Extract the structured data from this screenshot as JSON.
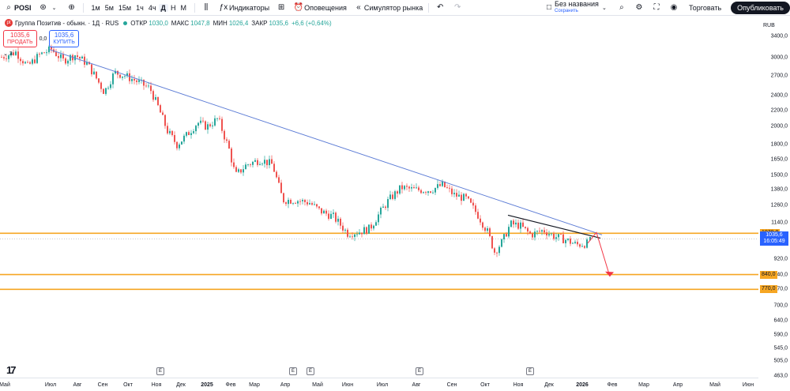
{
  "toolbar": {
    "symbol": "POSI",
    "timeframes": [
      "1м",
      "5м",
      "15м",
      "1ч",
      "4ч",
      "Д",
      "Н",
      "М"
    ],
    "active_timeframe": "Д",
    "indicators_label": "Индикаторы",
    "alerts_label": "Оповещения",
    "replay_label": "Симулятор рынка",
    "layout_name": "Без названия",
    "layout_status": "Сохранить",
    "trade_label": "Торговать",
    "publish_label": "Опубликовать"
  },
  "legend": {
    "title": "Группа Позитив - обыкн. · 1Д · RUS",
    "open_label": "ОТКР",
    "open": "1030,0",
    "high_label": "МАКС",
    "high": "1047,8",
    "low_label": "МИН",
    "low": "1026,4",
    "close_label": "ЗАКР",
    "close": "1035,6",
    "change": "+6,6 (+0,64%)",
    "sell_price": "1035,6",
    "sell_label": "ПРОДАТЬ",
    "spread": "0,0",
    "buy_price": "1035,6",
    "buy_label": "КУПИТЬ",
    "indicators_count": "3"
  },
  "price_scale": {
    "currency": "RUB",
    "ticks": [
      "3400,0",
      "3000,0",
      "2700,0",
      "2400,0",
      "2200,0",
      "2000,0",
      "1800,0",
      "1650,0",
      "1500,0",
      "1380,0",
      "1260,0",
      "1140,0",
      "920,0",
      "840,0",
      "770,0",
      "700,0",
      "640,0",
      "590,0",
      "545,0",
      "505,0",
      "463,0"
    ],
    "level_labels": [
      "1070,0",
      "840,0",
      "770,0"
    ],
    "last_price": "1035,6",
    "countdown": "16:05:49"
  },
  "time_axis": {
    "labels": [
      "Май",
      "Июл",
      "Авг",
      "Сен",
      "Окт",
      "Ноя",
      "Дек",
      "2025",
      "Фев",
      "Мар",
      "Апр",
      "Май",
      "Июн",
      "Июл",
      "Авг",
      "Сен",
      "Окт",
      "Ноя",
      "Дек",
      "2026",
      "Фев",
      "Мар",
      "Апр",
      "Май",
      "Июн"
    ],
    "bold_labels": [
      "2025",
      "2026"
    ],
    "event_marker": "E"
  },
  "chart_data": {
    "type": "candlestick",
    "symbol": "POSI",
    "timeframe": "1Д",
    "scale": "log",
    "y_range": [
      463,
      3400
    ],
    "x": [
      "Май",
      "Июл",
      "Авг",
      "Сен",
      "Окт",
      "Ноя",
      "Дек",
      "2025",
      "Фев",
      "Мар",
      "Апр",
      "Май",
      "Июн",
      "Июл",
      "Авг",
      "Сен",
      "Окт",
      "Ноя",
      "Дек",
      "2026"
    ],
    "approx_close": [
      3050,
      2900,
      2650,
      2550,
      2400,
      1850,
      1900,
      2050,
      1650,
      1550,
      1200,
      1180,
      1050,
      1300,
      1400,
      1380,
      1200,
      1100,
      1070,
      1035.6
    ],
    "horizontal_levels": [
      1070,
      840,
      770
    ],
    "trendline_start": 3150,
    "last": 1035.6,
    "colors": {
      "up": "#26a69a",
      "down": "#ef5350",
      "level": "#f6a623",
      "trend": "#5b7bd5",
      "arrow": "#f23645"
    }
  }
}
